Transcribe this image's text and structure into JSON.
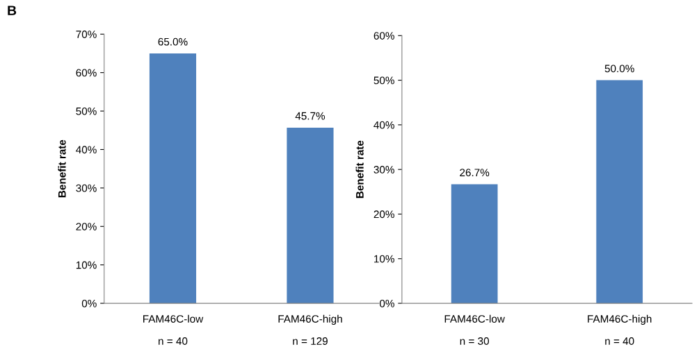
{
  "chart_data": [
    {
      "type": "bar",
      "ylabel": "Benefit rate",
      "annotations": [
        "B"
      ],
      "categories": [
        "FAM46C-low\nn = 40",
        "FAM46C-high\nn = 129"
      ],
      "values": [
        65.0,
        45.7
      ],
      "value_labels": [
        "65.0%",
        "45.7%"
      ],
      "color": "#4f81bd",
      "ylim": [
        0,
        70
      ],
      "yticks": [
        {
          "value": 0,
          "label": "0%"
        },
        {
          "value": 10,
          "label": "10%"
        },
        {
          "value": 20,
          "label": "20%"
        },
        {
          "value": 30,
          "label": "30%"
        },
        {
          "value": 40,
          "label": "40%"
        },
        {
          "value": 50,
          "label": "50%"
        },
        {
          "value": 60,
          "label": "60%"
        },
        {
          "value": 70,
          "label": "70%"
        }
      ],
      "grid": false,
      "legend": false
    },
    {
      "type": "bar",
      "ylabel": "Benefit rate",
      "categories": [
        "FAM46C-low\nn = 30",
        "FAM46C-high\nn = 40"
      ],
      "values": [
        26.7,
        50.0
      ],
      "value_labels": [
        "26.7%",
        "50.0%"
      ],
      "color": "#4f81bd",
      "ylim": [
        0,
        60
      ],
      "yticks": [
        {
          "value": 0,
          "label": "0%"
        },
        {
          "value": 10,
          "label": "10%"
        },
        {
          "value": 20,
          "label": "20%"
        },
        {
          "value": 30,
          "label": "30%"
        },
        {
          "value": 40,
          "label": "40%"
        },
        {
          "value": 50,
          "label": "50%"
        },
        {
          "value": 60,
          "label": "60%"
        }
      ],
      "grid": false,
      "legend": false
    }
  ]
}
